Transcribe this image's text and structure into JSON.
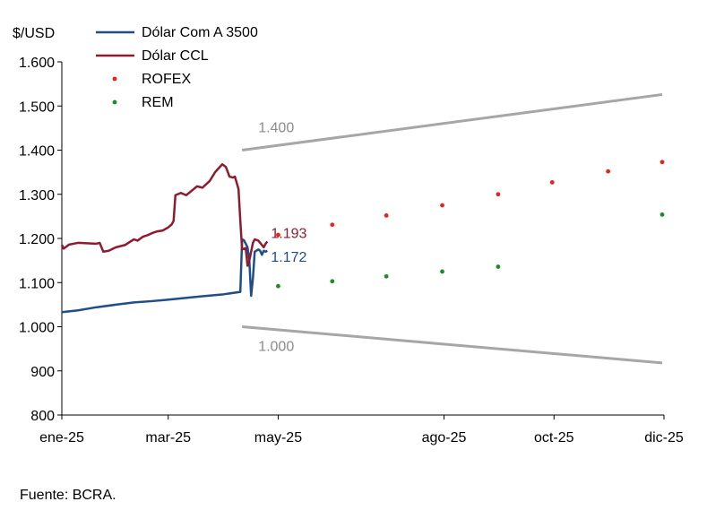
{
  "chart_data": {
    "type": "line",
    "ylabel": "$/USD",
    "ylim": [
      800,
      1600
    ],
    "yticks": [
      {
        "value": 800,
        "label": "800"
      },
      {
        "value": 900,
        "label": "900"
      },
      {
        "value": 1000,
        "label": "1.000"
      },
      {
        "value": 1100,
        "label": "1.100"
      },
      {
        "value": 1200,
        "label": "1.200"
      },
      {
        "value": 1300,
        "label": "1.300"
      },
      {
        "value": 1400,
        "label": "1.400"
      },
      {
        "value": 1500,
        "label": "1.500"
      },
      {
        "value": 1600,
        "label": "1.600"
      }
    ],
    "xlim": [
      "2025-01-01",
      "2025-12-01"
    ],
    "xticks": [
      {
        "value": "2025-01-01",
        "label": "ene-25"
      },
      {
        "value": "2025-03-01",
        "label": "mar-25"
      },
      {
        "value": "2025-05-01",
        "label": "may-25"
      },
      {
        "value": "2025-08-01",
        "label": "ago-25"
      },
      {
        "value": "2025-10-01",
        "label": "oct-25"
      },
      {
        "value": "2025-12-01",
        "label": "dic-25"
      }
    ],
    "legend_position": "top-left",
    "series": [
      {
        "name": "Dólar Com A 3500",
        "kind": "line",
        "color": "#1f4e89",
        "points": [
          [
            "2025-01-01",
            1033
          ],
          [
            "2025-01-10",
            1037
          ],
          [
            "2025-01-20",
            1044
          ],
          [
            "2025-01-31",
            1050
          ],
          [
            "2025-02-10",
            1055
          ],
          [
            "2025-02-20",
            1058
          ],
          [
            "2025-02-28",
            1061
          ],
          [
            "2025-03-10",
            1065
          ],
          [
            "2025-03-20",
            1069
          ],
          [
            "2025-03-31",
            1073
          ],
          [
            "2025-04-10",
            1079
          ],
          [
            "2025-04-11",
            1198
          ],
          [
            "2025-04-12",
            1196
          ],
          [
            "2025-04-14",
            1180
          ],
          [
            "2025-04-15",
            1150
          ],
          [
            "2025-04-16",
            1070
          ],
          [
            "2025-04-17",
            1110
          ],
          [
            "2025-04-18",
            1170
          ],
          [
            "2025-04-20",
            1175
          ],
          [
            "2025-04-21",
            1172
          ],
          [
            "2025-04-22",
            1163
          ],
          [
            "2025-04-23",
            1172
          ],
          [
            "2025-04-24",
            1170
          ],
          [
            "2025-04-25",
            1172
          ]
        ],
        "last_label": "1.172"
      },
      {
        "name": "Dólar CCL",
        "kind": "line",
        "color": "#8e1b2f",
        "points": [
          [
            "2025-01-01",
            1185
          ],
          [
            "2025-01-02",
            1177
          ],
          [
            "2025-01-05",
            1186
          ],
          [
            "2025-01-10",
            1190
          ],
          [
            "2025-01-15",
            1189
          ],
          [
            "2025-01-20",
            1188
          ],
          [
            "2025-01-22",
            1190
          ],
          [
            "2025-01-24",
            1170
          ],
          [
            "2025-01-27",
            1172
          ],
          [
            "2025-01-31",
            1180
          ],
          [
            "2025-02-05",
            1185
          ],
          [
            "2025-02-10",
            1198
          ],
          [
            "2025-02-12",
            1195
          ],
          [
            "2025-02-15",
            1204
          ],
          [
            "2025-02-18",
            1208
          ],
          [
            "2025-02-20",
            1212
          ],
          [
            "2025-02-23",
            1216
          ],
          [
            "2025-02-26",
            1218
          ],
          [
            "2025-03-01",
            1225
          ],
          [
            "2025-03-03",
            1232
          ],
          [
            "2025-03-04",
            1240
          ],
          [
            "2025-03-05",
            1298
          ],
          [
            "2025-03-08",
            1303
          ],
          [
            "2025-03-11",
            1298
          ],
          [
            "2025-03-14",
            1308
          ],
          [
            "2025-03-17",
            1318
          ],
          [
            "2025-03-20",
            1315
          ],
          [
            "2025-03-24",
            1330
          ],
          [
            "2025-03-27",
            1350
          ],
          [
            "2025-03-31",
            1368
          ],
          [
            "2025-04-02",
            1362
          ],
          [
            "2025-04-04",
            1340
          ],
          [
            "2025-04-06",
            1338
          ],
          [
            "2025-04-07",
            1340
          ],
          [
            "2025-04-09",
            1312
          ],
          [
            "2025-04-10",
            1240
          ],
          [
            "2025-04-11",
            1175
          ],
          [
            "2025-04-13",
            1178
          ],
          [
            "2025-04-14",
            1138
          ],
          [
            "2025-04-15",
            1150
          ],
          [
            "2025-04-17",
            1190
          ],
          [
            "2025-04-18",
            1198
          ],
          [
            "2025-04-20",
            1195
          ],
          [
            "2025-04-22",
            1185
          ],
          [
            "2025-04-23",
            1180
          ],
          [
            "2025-04-24",
            1188
          ],
          [
            "2025-04-25",
            1193
          ]
        ],
        "last_label": "1.193"
      },
      {
        "name": "ROFEX",
        "kind": "dots",
        "color": "#e8231f",
        "points": [
          [
            "2025-05-01",
            1208
          ],
          [
            "2025-05-31",
            1231
          ],
          [
            "2025-06-30",
            1252
          ],
          [
            "2025-07-31",
            1275
          ],
          [
            "2025-08-31",
            1300
          ],
          [
            "2025-09-30",
            1327
          ],
          [
            "2025-10-31",
            1352
          ],
          [
            "2025-11-30",
            1373
          ]
        ]
      },
      {
        "name": "REM",
        "kind": "dots",
        "color": "#1f8a2a",
        "points": [
          [
            "2025-05-01",
            1092
          ],
          [
            "2025-05-31",
            1103
          ],
          [
            "2025-06-30",
            1114
          ],
          [
            "2025-07-31",
            1125
          ],
          [
            "2025-08-31",
            1136
          ],
          [
            "2025-11-30",
            1254
          ]
        ]
      },
      {
        "name": "",
        "kind": "band",
        "color": "#a6a6a6",
        "points": [
          [
            "2025-04-11",
            1400
          ],
          [
            "2025-11-30",
            1526
          ]
        ],
        "label": "1.400"
      },
      {
        "name": "",
        "kind": "band",
        "color": "#a6a6a6",
        "points": [
          [
            "2025-04-11",
            1000
          ],
          [
            "2025-11-30",
            918
          ]
        ],
        "label": "1.000"
      }
    ]
  },
  "source": "Fuente: BCRA."
}
